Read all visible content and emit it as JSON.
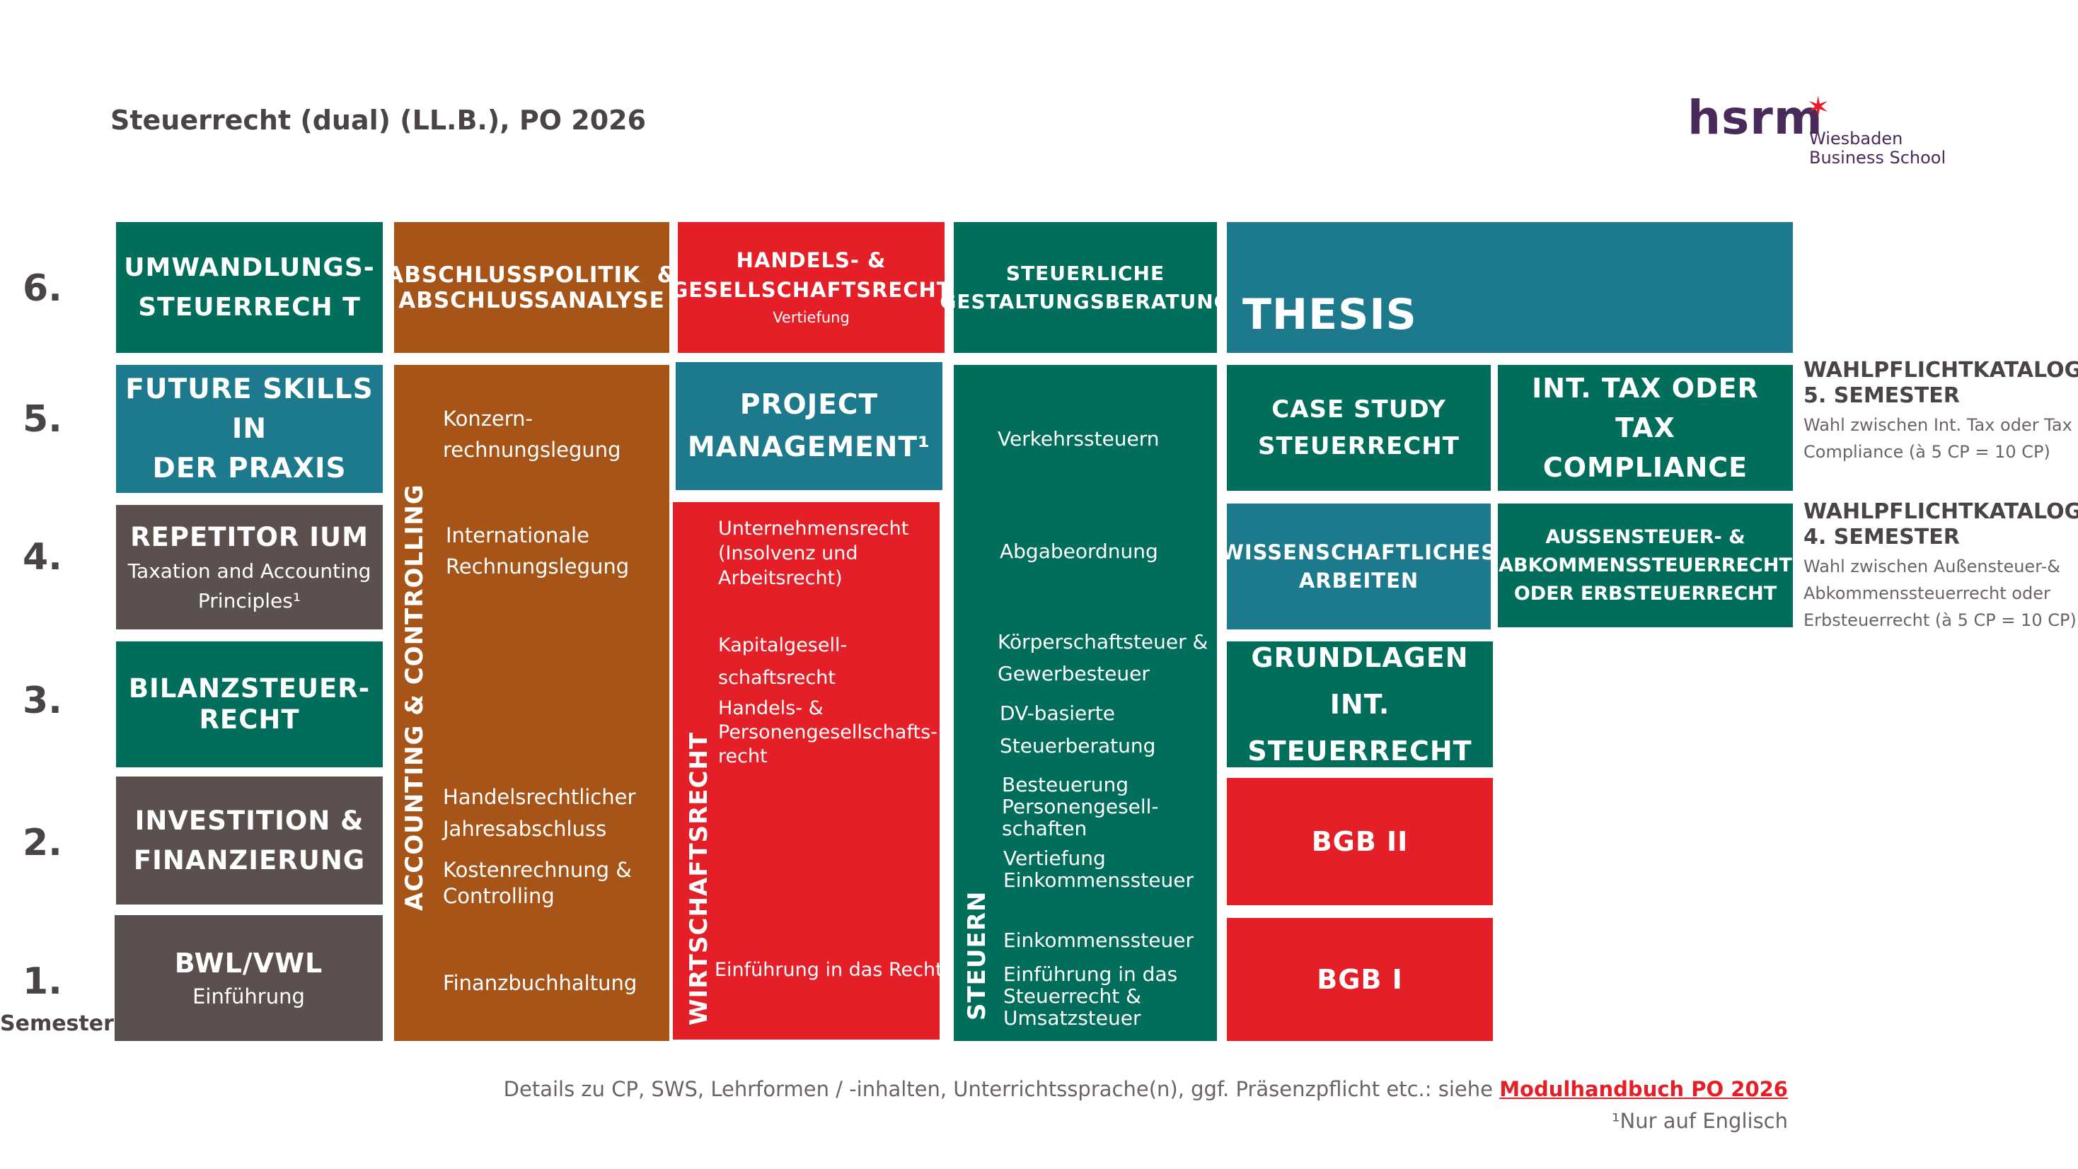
{
  "header": {
    "title": "Steuerrecht (dual) (LL.B.), PO 2026",
    "logo_text": "hsrm",
    "logo_sub1": "Wiesbaden",
    "logo_sub2": "Business School"
  },
  "semesters": {
    "s6": "6.",
    "s5": "5.",
    "s4": "4.",
    "s3": "3.",
    "s2": "2.",
    "s1": "1.",
    "label": "Semester"
  },
  "col1": {
    "umwandlung": [
      "UMWANDLUNGS-",
      "STEUERRECH T"
    ],
    "future": [
      "FUTURE SKILLS IN",
      "DER PRAXIS"
    ],
    "repetitorium": "REPETITOR IUM",
    "repetitorium_sub": [
      "Taxation and Accounting",
      "Principles¹"
    ],
    "bilanz": [
      "BILANZSTEUER-",
      "RECHT"
    ],
    "investition": [
      "INVESTITION &",
      "FINANZIERUNG"
    ],
    "bwl": "BWL/VWL",
    "bwl_sub": "Einführung"
  },
  "col2": {
    "abschluss": [
      "ABSCHLUSSPOLITIK  &",
      "ABSCHLUSSANALYSE"
    ],
    "vertical": "ACCOUNTING & CONTROLLING",
    "items": {
      "konzern": [
        "Konzern-",
        "rechnungslegung"
      ],
      "international": [
        "Internationale",
        "Rechnungslegung"
      ],
      "handelsrecht": [
        "Handelsrechtlicher",
        "Jahresabschluss"
      ],
      "kosten": [
        "Kostenrechnung &",
        "Controlling"
      ],
      "finanz": "Finanzbuchhaltung"
    }
  },
  "col3": {
    "handels": [
      "HANDELS- &",
      "GESELLSCHAFTSRECHT"
    ],
    "handels_sub": "Vertiefung",
    "project": [
      "PROJECT",
      "MANAGEMENT¹"
    ],
    "vertical": "WIRTSCHAFTSRECHT",
    "items": {
      "unternehmen": [
        "Unternehmensrecht",
        "(Insolvenz und",
        "Arbeitsrecht)"
      ],
      "kapital": [
        "Kapitalgesell-",
        "schaftsrecht"
      ],
      "personen": [
        "Handels- &",
        "Personengesellschafts-",
        "recht"
      ],
      "einfuehrung": "Einführung in das Recht"
    }
  },
  "col4": {
    "steuerliche": [
      "STEUERLICHE",
      "GESTALTUNGSBERATUNG"
    ],
    "vertical": "STEUERN",
    "items": {
      "verkehr": "Verkehrssteuern",
      "abgabe": "Abgabeordnung",
      "koerperschaft": [
        "Körperschaftsteuer &",
        "Gewerbesteuer"
      ],
      "dv": [
        "DV-basierte",
        "Steuerberatung"
      ],
      "besteuerung": [
        "Besteuerung",
        "Personengesell-",
        "schaften"
      ],
      "vertiefung": [
        "Vertiefung",
        "Einkommenssteuer"
      ],
      "einkommen": "Einkommenssteuer",
      "einfuehrung": [
        "Einführung in das",
        "Steuerrecht &",
        "Umsatzsteuer"
      ]
    }
  },
  "col5": {
    "thesis": "THESIS",
    "case": [
      "CASE STUDY",
      "STEUERRECHT"
    ],
    "wissen": [
      "WISSENSCHAFTLICHES",
      "ARBEITEN"
    ],
    "grundlagen": [
      "GRUNDLAGEN INT.",
      "STEUERRECHT"
    ],
    "bgb2": "BGB II",
    "bgb1": "BGB I"
  },
  "col6": {
    "inttax": [
      "INT. TAX ODER TAX",
      "COMPLIANCE"
    ],
    "aussen": [
      "AUSSENSTEUER- &",
      "ABKOMMENSSTEUERRECHT",
      "ODER ERBSTEUERRECHT"
    ]
  },
  "wahlpflicht": {
    "w5_title": [
      "WAHLPFLICHTKATALOGE",
      "5. SEMESTER"
    ],
    "w5_text": [
      "Wahl zwischen Int. Tax oder Tax",
      "Compliance (à 5 CP = 10 CP)"
    ],
    "w4_title": [
      "WAHLPFLICHTKATALOGE",
      "4. SEMESTER"
    ],
    "w4_text": [
      "Wahl zwischen Außensteuer-&",
      "Abkommenssteuerrecht oder",
      "Erbsteuerrecht (à 5 CP = 10 CP)"
    ]
  },
  "footer": {
    "details": "Details zu CP, SWS, Lehrformen / -inhalten, Unterrichtssprache(n), ggf. Präsenzpflicht etc.: siehe",
    "link": "Modulhandbuch PO 2026",
    "note": "¹Nur auf Englisch"
  },
  "colors": {
    "dark": "#5b504d",
    "green": "#006e5a",
    "blue": "#1c7a8c",
    "orange": "#a75418",
    "red": "#e51f27",
    "logo": "#4a2a5a"
  }
}
